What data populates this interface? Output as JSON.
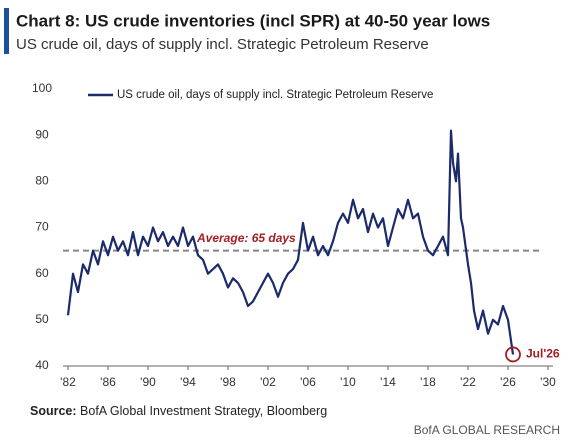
{
  "chart_data": {
    "type": "line",
    "title": "Chart 8: US crude inventories (incl SPR) at 40-50 year lows",
    "subtitle": "US crude oil, days of supply incl. Strategic Petroleum Reserve",
    "x": [
      1982.0,
      1982.5,
      1983.0,
      1983.5,
      1984.0,
      1984.5,
      1985.0,
      1985.5,
      1986.0,
      1986.5,
      1987.0,
      1987.5,
      1988.0,
      1988.5,
      1989.0,
      1989.5,
      1990.0,
      1990.5,
      1991.0,
      1991.5,
      1992.0,
      1992.5,
      1993.0,
      1993.5,
      1994.0,
      1994.5,
      1995.0,
      1995.5,
      1996.0,
      1996.5,
      1997.0,
      1997.5,
      1998.0,
      1998.5,
      1999.0,
      1999.5,
      2000.0,
      2000.5,
      2001.0,
      2001.5,
      2002.0,
      2002.5,
      2003.0,
      2003.5,
      2004.0,
      2004.5,
      2005.0,
      2005.5,
      2006.0,
      2006.5,
      2007.0,
      2007.5,
      2008.0,
      2008.5,
      2009.0,
      2009.5,
      2010.0,
      2010.5,
      2011.0,
      2011.5,
      2012.0,
      2012.5,
      2013.0,
      2013.5,
      2014.0,
      2014.5,
      2015.0,
      2015.5,
      2016.0,
      2016.5,
      2017.0,
      2017.5,
      2018.0,
      2018.5,
      2019.0,
      2019.5,
      2020.0,
      2020.3,
      2020.5,
      2020.8,
      2021.0,
      2021.3,
      2021.5,
      2022.0,
      2022.3,
      2022.6,
      2023.0,
      2023.5,
      2024.0,
      2024.5,
      2025.0,
      2025.5,
      2026.0,
      2026.5
    ],
    "series": [
      {
        "name": "US crude oil, days of supply incl. Strategic Petroleum Reserve",
        "color": "#1b2a6b",
        "values": [
          51,
          60,
          56,
          62,
          60,
          65,
          62,
          67,
          64,
          68,
          65,
          67,
          64,
          69,
          64,
          68,
          66,
          70,
          67,
          69,
          66,
          68,
          66,
          70,
          66,
          68,
          64,
          63,
          60,
          61,
          62,
          60,
          57,
          59,
          58,
          56,
          53,
          54,
          56,
          58,
          60,
          58,
          55,
          58,
          60,
          61,
          63,
          71,
          65,
          68,
          64,
          66,
          64,
          67,
          71,
          73,
          71,
          76,
          72,
          74,
          69,
          73,
          70,
          72,
          66,
          70,
          74,
          72,
          76,
          72,
          73,
          68,
          65,
          64,
          66,
          68,
          64,
          91,
          84,
          80,
          86,
          72,
          70,
          62,
          58,
          52,
          48,
          52,
          47,
          50,
          49,
          53,
          50,
          42.5
        ]
      }
    ],
    "xlim": [
      1981.5,
      2030.5
    ],
    "xticks": [
      {
        "value": 1982,
        "label": "'82"
      },
      {
        "value": 1986,
        "label": "'86"
      },
      {
        "value": 1990,
        "label": "'90"
      },
      {
        "value": 1994,
        "label": "'94"
      },
      {
        "value": 1998,
        "label": "'98"
      },
      {
        "value": 2002,
        "label": "'02"
      },
      {
        "value": 2006,
        "label": "'06"
      },
      {
        "value": 2010,
        "label": "'10"
      },
      {
        "value": 2014,
        "label": "'14"
      },
      {
        "value": 2018,
        "label": "'18"
      },
      {
        "value": 2022,
        "label": "'22"
      },
      {
        "value": 2026,
        "label": "'26"
      },
      {
        "value": 2030,
        "label": "'30"
      }
    ],
    "ylim": [
      40,
      100
    ],
    "yticks": [
      40,
      50,
      60,
      70,
      80,
      90,
      100
    ],
    "average": 65,
    "average_label": "Average: 65 days",
    "end_label": "Jul'26",
    "source_label": "Source:",
    "source": "BofA Global Investment Strategy, Bloomberg",
    "brand": "BofA GLOBAL RESEARCH"
  }
}
